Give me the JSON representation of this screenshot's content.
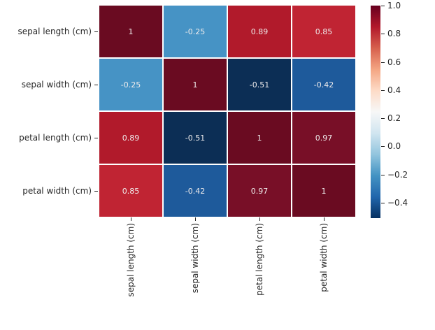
{
  "figure": {
    "background": "#ffffff",
    "text_color": "#262626",
    "annot_text_color": "#efecec",
    "gridline_color": "#ffffff"
  },
  "chart_data": {
    "type": "heatmap",
    "title": "",
    "xlabel": "",
    "ylabel": "",
    "x_categories": [
      "sepal length (cm)",
      "sepal width (cm)",
      "petal length (cm)",
      "petal width (cm)"
    ],
    "y_categories": [
      "sepal length (cm)",
      "sepal width (cm)",
      "petal length (cm)",
      "petal width (cm)"
    ],
    "matrix": [
      [
        1,
        -0.25,
        0.89,
        0.85
      ],
      [
        -0.25,
        1,
        -0.51,
        -0.42
      ],
      [
        0.89,
        -0.51,
        1,
        0.97
      ],
      [
        0.85,
        -0.42,
        0.97,
        1
      ]
    ],
    "cell_labels": [
      [
        "1",
        "-0.25",
        "0.89",
        "0.85"
      ],
      [
        "-0.25",
        "1",
        "-0.51",
        "-0.42"
      ],
      [
        "0.89",
        "-0.51",
        "1",
        "0.97"
      ],
      [
        "0.85",
        "-0.42",
        "0.97",
        "1"
      ]
    ],
    "cell_colors": [
      [
        "#6a0b21",
        "#4693c5",
        "#b11a2b",
        "#c02433"
      ],
      [
        "#4693c5",
        "#6a0b21",
        "#0c2e55",
        "#1e5a9b"
      ],
      [
        "#b11a2b",
        "#0c2e55",
        "#6a0b21",
        "#780f27"
      ],
      [
        "#c02433",
        "#1e5a9b",
        "#780f27",
        "#6a0b21"
      ]
    ],
    "colormap": "RdBu_r",
    "colorbar": {
      "vmin": -0.51,
      "vmax": 1.0,
      "tick_values": [
        1.0,
        0.8,
        0.6,
        0.4,
        0.2,
        0.0,
        -0.2,
        -0.4
      ],
      "tick_labels": [
        "1.0",
        "0.8",
        "0.6",
        "0.4",
        "0.2",
        "0.0",
        "−0.2",
        "−0.4"
      ],
      "gradient_top_to_bottom": [
        "#67001f",
        "#b2182b",
        "#d6604d",
        "#f4a582",
        "#fddbc7",
        "#f7f7f7",
        "#d1e5f0",
        "#92c5de",
        "#4393c3",
        "#2166ac",
        "#053061"
      ]
    },
    "legend": null,
    "grid": false
  }
}
